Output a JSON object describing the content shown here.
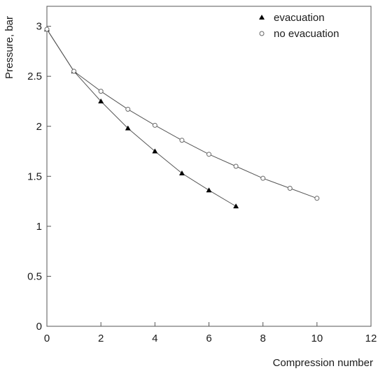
{
  "chart_data": {
    "type": "line",
    "xlabel": "Compression number",
    "ylabel": "Pressure, bar",
    "xlim": [
      0,
      12
    ],
    "ylim": [
      0,
      3.2
    ],
    "x_ticks": [
      0,
      2,
      4,
      6,
      8,
      10,
      12
    ],
    "x_tick_labels": [
      "0",
      "2",
      "4",
      "6",
      "8",
      "10",
      "12"
    ],
    "y_ticks": [
      0,
      0.5,
      1,
      1.5,
      2,
      2.5,
      3
    ],
    "y_tick_labels": [
      "0",
      "0.5",
      "1",
      "1.5",
      "2",
      "2.5",
      "3"
    ],
    "grid": false,
    "legend_position": "top-right",
    "series": [
      {
        "name": "evacuation",
        "marker": "filled-triangle",
        "color": "#000000",
        "x": [
          0,
          1,
          2,
          3,
          4,
          5,
          6,
          7
        ],
        "y": [
          2.97,
          2.55,
          2.25,
          1.98,
          1.75,
          1.53,
          1.36,
          1.2
        ]
      },
      {
        "name": "no evacuation",
        "marker": "open-circle",
        "color": "#000000",
        "x": [
          0,
          1,
          2,
          3,
          4,
          5,
          6,
          7,
          8,
          9,
          10
        ],
        "y": [
          2.97,
          2.55,
          2.35,
          2.17,
          2.01,
          1.86,
          1.72,
          1.6,
          1.48,
          1.38,
          1.28
        ]
      }
    ]
  }
}
